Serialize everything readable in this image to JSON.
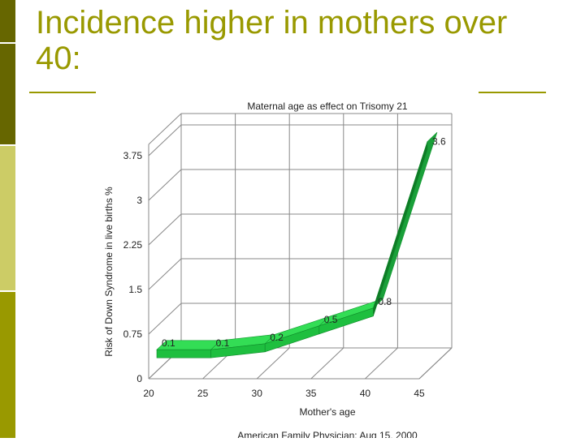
{
  "slide": {
    "title": "Incidence higher in mothers over 40:",
    "colors": {
      "accent": "#999900",
      "dark_bar": "#666600",
      "light_bar": "#cccc66",
      "series": "#22cc44"
    }
  },
  "chart_data": {
    "type": "area",
    "title": "Maternal age as effect on Trisomy 21",
    "xlabel": "Mother's age",
    "ylabel": "Risk of Down Syndrome in live births %",
    "x_ticks": [
      "20",
      "25",
      "30",
      "35",
      "40",
      "45"
    ],
    "y_ticks": [
      "0",
      "0.75",
      "1.5",
      "2.25",
      "3",
      "3.75"
    ],
    "xlim": [
      20,
      45
    ],
    "ylim": [
      0,
      3.75
    ],
    "grid": true,
    "series": [
      {
        "x": [
          20,
          25,
          30,
          35,
          40,
          45
        ],
        "values": [
          0.1,
          0.1,
          0.2,
          0.5,
          0.8,
          3.6
        ],
        "labels": [
          "0.1",
          "0.1",
          "0.2",
          "0.5",
          "0.8",
          "3.6"
        ]
      }
    ],
    "source": "American Family Physician: Aug 15, 2000"
  }
}
